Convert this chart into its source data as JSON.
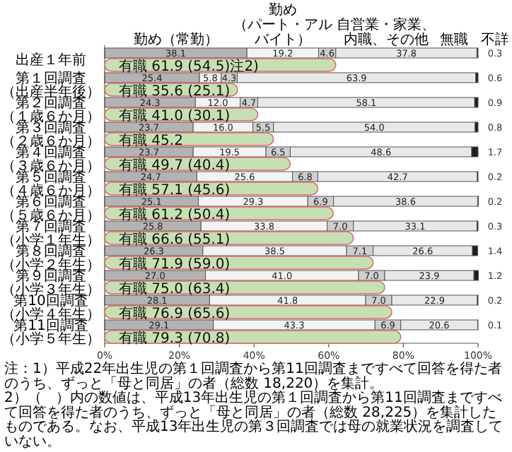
{
  "chart_data": [
    {
      "type": "bar",
      "orientation": "horizontal",
      "stacked": true,
      "legend": "top",
      "data_labels": true,
      "categories": [
        "出産１年前",
        "第１回調査（出産半年後）",
        "第２回調査（１歳６か月）",
        "第３回調査（２歳６か月）",
        "第４回調査（３歳６か月）",
        "第５回調査（４歳６か月）",
        "第６回調査（５歳６か月）",
        "第７回調査（小学１年生）",
        "第８回調査（小学２年生）",
        "第９回調査（小学３年生）",
        "第10回調査（小学４年生）",
        "第11回調査（小学５年生）"
      ],
      "series": [
        {
          "name": "勤め（常勤）",
          "color": "#b3b3b3",
          "values": [
            38.1,
            25.4,
            24.3,
            23.7,
            23.7,
            24.7,
            25.1,
            25.8,
            26.3,
            27.0,
            28.1,
            29.1
          ],
          "value_labels": [
            "38.1",
            "25.4",
            "24.3",
            "23.7",
            "23.7",
            "24.7",
            "25.1",
            "25.8",
            "26.3",
            "27.0",
            "28.1",
            "29.1"
          ]
        },
        {
          "name": "勤め（パート・アルバイト）",
          "color": "#f3f3f3",
          "values": [
            19.2,
            5.8,
            12.0,
            16.0,
            19.5,
            25.6,
            29.3,
            33.8,
            38.5,
            41.0,
            41.8,
            43.3
          ],
          "value_labels": [
            "19.2",
            "5.8",
            "12.0",
            "16.0",
            "19.5",
            "25.6",
            "29.3",
            "33.8",
            "38.5",
            "41.0",
            "41.8",
            "43.3"
          ]
        },
        {
          "name": "自営業・家業、内職、その他",
          "color": "#cfcfcf",
          "values": [
            4.6,
            4.3,
            4.7,
            5.5,
            6.5,
            6.8,
            6.9,
            7.0,
            7.1,
            7.0,
            7.0,
            6.9
          ],
          "value_labels": [
            "4.6",
            "4.3",
            "4.7",
            "5.5",
            "6.5",
            "6.8",
            "6.9",
            "7.0",
            "7.1",
            "7.0",
            "7.0",
            "6.9"
          ]
        },
        {
          "name": "無職",
          "color": "#e8e8e8",
          "values": [
            37.8,
            63.9,
            58.1,
            54.0,
            48.6,
            42.7,
            38.6,
            33.1,
            26.6,
            23.9,
            22.9,
            20.6
          ],
          "value_labels": [
            "37.8",
            "63.9",
            "58.1",
            "54.0",
            "48.6",
            "42.7",
            "38.6",
            "33.1",
            "26.6",
            "23.9",
            "22.9",
            "20.6"
          ]
        },
        {
          "name": "不詳",
          "color": "#1e1e1e",
          "values": [
            0.3,
            0.6,
            0.9,
            0.8,
            1.7,
            0.2,
            0.2,
            0.3,
            1.4,
            1.2,
            0.2,
            0.1
          ],
          "value_labels": [
            "0.3",
            "0.6",
            "0.9",
            "0.8",
            "1.7",
            "0.2",
            "0.2",
            "0.3",
            "1.4",
            "1.2",
            "0.2",
            "0.1"
          ]
        }
      ],
      "xlim": [
        0,
        100
      ],
      "xticks": [
        {
          "value": 0,
          "label": "0%"
        },
        {
          "value": 20,
          "label": "20%"
        },
        {
          "value": 40,
          "label": "40%"
        },
        {
          "value": 60,
          "label": "60%"
        },
        {
          "value": 80,
          "label": "80%"
        },
        {
          "value": 100,
          "label": "100%"
        }
      ],
      "annotations": [
        "注：1）平成22年出生児の第１回調査から第11回調査まですべて回答を得た者のうち、ずっと「母と同居」の者（総数 18,220）を集計。",
        "2）（　）内の数値は、平成13年出生児の第１回調査から第11回調査まですべて回答を得た者のうち、ずっと「母と同居」の者（総数 28,225）を集計したものである。なお、平成13年出生児の第３回調査では母の就業状況を調査していない。"
      ]
    },
    {
      "type": "bar",
      "orientation": "horizontal",
      "tick_labels": false,
      "data_labels": true,
      "categories": [
        null,
        null,
        null,
        null,
        null,
        null,
        null,
        null,
        null,
        null,
        null,
        null
      ],
      "series": [
        {
          "color": "#c6e0b4",
          "values": [
            61.9,
            35.6,
            41.0,
            45.2,
            49.7,
            57.1,
            61.2,
            66.6,
            71.9,
            75.0,
            76.9,
            79.3
          ],
          "value_labels": [
            "有職 61.9 (54.5)注2)",
            "有職 35.6 (25.1)",
            "有職 41.0 (30.1)",
            "有職 45.2",
            "有職 49.7 (40.4)",
            "有職 57.1 (45.6)",
            "有職 61.2 (50.4)",
            "有職 66.6 (55.1)",
            "有職 71.9 (59.0)",
            "有職 75.0 (63.4)",
            "有職 76.9 (65.6)",
            "有職 79.3 (70.8)"
          ]
        }
      ],
      "xlim": [
        0,
        100
      ]
    }
  ]
}
